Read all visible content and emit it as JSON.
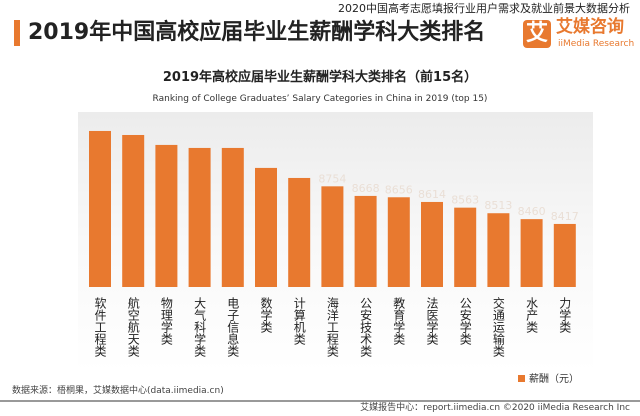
{
  "header": {
    "title": "2019年中国高校应届毕业生薪酬学科大类排名",
    "subtitle": "2020中国高考志愿填报行业用户需求及就业前景大数据分析",
    "logo_mark": "艾",
    "logo_cn": "艾媒咨询",
    "logo_en": "iiMedia Research"
  },
  "chart_data": {
    "type": "bar",
    "title": "2019年高校应届毕业生薪酬学科大类排名（前15名）",
    "subtitle": "Ranking of College Graduates’ Salary Categories in China in 2019 (top 15)",
    "categories": [
      "软件工程类",
      "航空航天类",
      "物理学类",
      "大气科学类",
      "电子信息类",
      "数学类",
      "计算机类",
      "海洋工程类",
      "公安技术类",
      "教育学类",
      "法医学类",
      "公安学类",
      "交通运输类",
      "水产类",
      "力学类"
    ],
    "series": [
      {
        "name": "薪酬（元）",
        "values": [
          9250,
          9214,
          9125,
          9098,
          9098,
          8919,
          8829,
          8754,
          8668,
          8656,
          8614,
          8563,
          8513,
          8460,
          8417
        ]
      }
    ],
    "data_labels": [
      "",
      "",
      "",
      "",
      "",
      "",
      "",
      "8754",
      "8668",
      "8656",
      "8614",
      "8563",
      "8513",
      "8460",
      "8417"
    ],
    "legend": "bottom-right",
    "color": "#e8792f"
  },
  "footer": {
    "source": "数据来源：梧桐果，艾媒数据中心(data.iimedia.cn)",
    "credit": "艾媒报告中心：report.iimedia.cn  ©2020  iiMedia Research Inc"
  }
}
